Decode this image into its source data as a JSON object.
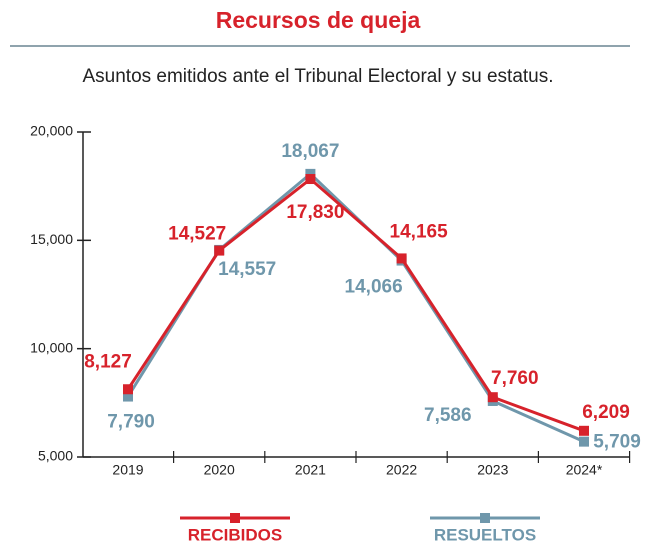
{
  "chart_data": {
    "type": "line",
    "title": "Recursos de queja",
    "subtitle": "Asuntos emitidos ante el Tribunal Electoral y su estatus.",
    "categories": [
      "2019",
      "2020",
      "2021",
      "2022",
      "2023",
      "2024*"
    ],
    "series": [
      {
        "name": "RECIBIDOS",
        "color": "#d7222b",
        "values": [
          8127,
          14527,
          17830,
          14165,
          7760,
          6209
        ],
        "value_labels": [
          "8,127",
          "14,527",
          "17,830",
          "14,165",
          "7,760",
          "6,209"
        ]
      },
      {
        "name": "RESUELTOS",
        "color": "#6f97ab",
        "values": [
          7790,
          14557,
          18067,
          14066,
          7586,
          5709
        ],
        "value_labels": [
          "7,790",
          "14,557",
          "18,067",
          "14,066",
          "7,586",
          "5,709"
        ]
      }
    ],
    "ylim": [
      5000,
      20000
    ],
    "yticks": [
      {
        "value": 5000,
        "label": "5,000"
      },
      {
        "value": 10000,
        "label": "10,000"
      },
      {
        "value": 15000,
        "label": "15,000"
      },
      {
        "value": 20000,
        "label": "20,000"
      }
    ],
    "grid": false
  }
}
